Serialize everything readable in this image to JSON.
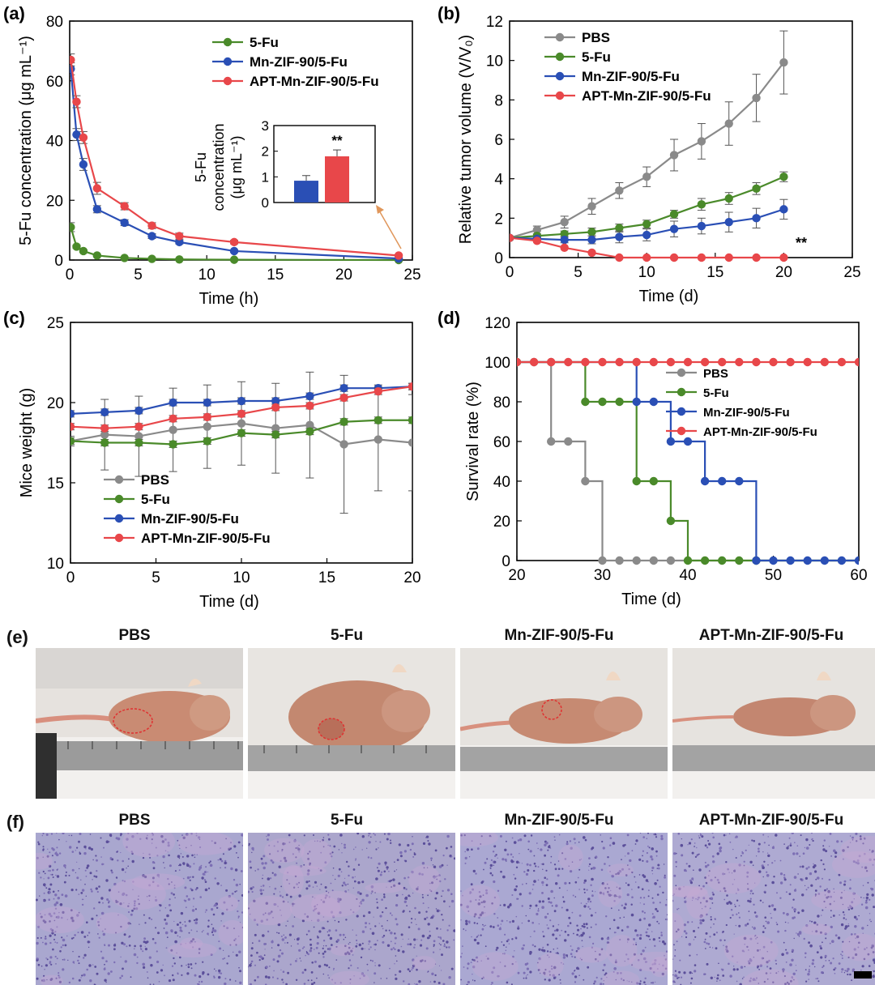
{
  "chart_data": [
    {
      "type": "line",
      "panel_label": "(a)",
      "xlabel": "Time (h)",
      "ylabel": "5-Fu concentration (μg mL⁻¹)",
      "xlim": [
        0,
        25
      ],
      "ylim": [
        0,
        80
      ],
      "xticks": [
        "0",
        "5",
        "10",
        "15",
        "20",
        "25"
      ],
      "yticks": [
        "0",
        "20",
        "40",
        "60",
        "80"
      ],
      "legend": "top-right",
      "series": [
        {
          "name": "5-Fu",
          "color": "#4a8a2a",
          "x": [
            0.08,
            0.5,
            1,
            2,
            4,
            6,
            8,
            12,
            24
          ],
          "y": [
            11,
            4.5,
            3,
            1.5,
            0.7,
            0.4,
            0.2,
            0.1,
            0
          ],
          "err": [
            1.5,
            0.5,
            0.4,
            0.2,
            0.1,
            0.1,
            0.05,
            0.05,
            0
          ]
        },
        {
          "name": "Mn-ZIF-90/5-Fu",
          "color": "#2a4fb5",
          "x": [
            0.08,
            0.5,
            1,
            2,
            4,
            6,
            8,
            12,
            24
          ],
          "y": [
            64,
            42,
            32,
            17,
            12.5,
            8,
            6,
            3,
            0.5
          ],
          "err": [
            2,
            2,
            2,
            1.2,
            1,
            0.8,
            0.6,
            0.4,
            0.2
          ]
        },
        {
          "name": "APT-Mn-ZIF-90/5-Fu",
          "color": "#e8474a",
          "x": [
            0.08,
            0.5,
            1,
            2,
            4,
            6,
            8,
            12,
            24
          ],
          "y": [
            67,
            53,
            41,
            24,
            18,
            11.5,
            8,
            6,
            1.5
          ],
          "err": [
            2,
            2,
            2,
            2,
            1.2,
            1,
            1,
            0.6,
            0.3
          ]
        }
      ],
      "inset": {
        "type": "bar",
        "ylabel_line1": "5-Fu",
        "ylabel_line2": "concentration",
        "ylabel_line3": "(μg mL⁻¹)",
        "yticks": [
          "0",
          "1",
          "2",
          "3"
        ],
        "ylim": [
          0,
          3
        ],
        "values": [
          0.85,
          1.8
        ],
        "err": [
          0.2,
          0.25
        ],
        "colors": [
          "#2a4fb5",
          "#e8474a"
        ],
        "annotation": "**"
      }
    },
    {
      "type": "line",
      "panel_label": "(b)",
      "xlabel": "Time (d)",
      "ylabel": "Relative tumor volume (V/V₀)",
      "xlim": [
        0,
        25
      ],
      "ylim": [
        0,
        12
      ],
      "xticks": [
        "0",
        "5",
        "10",
        "15",
        "20",
        "25"
      ],
      "yticks": [
        "0",
        "2",
        "4",
        "6",
        "8",
        "10",
        "12"
      ],
      "legend": "top-left",
      "annotation": "**",
      "series": [
        {
          "name": "PBS",
          "color": "#8a8a8a",
          "x": [
            0,
            2,
            4,
            6,
            8,
            10,
            12,
            14,
            16,
            18,
            20
          ],
          "y": [
            1,
            1.4,
            1.8,
            2.6,
            3.4,
            4.1,
            5.2,
            5.9,
            6.8,
            8.1,
            9.9
          ],
          "err": [
            0.1,
            0.2,
            0.3,
            0.4,
            0.4,
            0.5,
            0.8,
            0.9,
            1.1,
            1.2,
            1.6
          ]
        },
        {
          "name": "5-Fu",
          "color": "#4a8a2a",
          "x": [
            0,
            2,
            4,
            6,
            8,
            10,
            12,
            14,
            16,
            18,
            20
          ],
          "y": [
            1,
            1.1,
            1.2,
            1.3,
            1.5,
            1.7,
            2.2,
            2.7,
            3.0,
            3.5,
            4.1
          ],
          "err": [
            0.05,
            0.1,
            0.15,
            0.2,
            0.2,
            0.2,
            0.2,
            0.3,
            0.3,
            0.3,
            0.25
          ]
        },
        {
          "name": "Mn-ZIF-90/5-Fu",
          "color": "#2a4fb5",
          "x": [
            0,
            2,
            4,
            6,
            8,
            10,
            12,
            14,
            16,
            18,
            20
          ],
          "y": [
            1,
            0.95,
            0.9,
            0.9,
            1.05,
            1.15,
            1.45,
            1.6,
            1.8,
            2.0,
            2.45
          ],
          "err": [
            0.05,
            0.1,
            0.15,
            0.2,
            0.3,
            0.3,
            0.4,
            0.4,
            0.5,
            0.5,
            0.5
          ]
        },
        {
          "name": "APT-Mn-ZIF-90/5-Fu",
          "color": "#e8474a",
          "x": [
            0,
            2,
            4,
            6,
            8,
            10,
            12,
            14,
            16,
            18,
            20
          ],
          "y": [
            1,
            0.85,
            0.5,
            0.25,
            0,
            0,
            0,
            0,
            0,
            0,
            0
          ],
          "err": [
            0,
            0,
            0,
            0,
            0,
            0,
            0,
            0,
            0,
            0,
            0
          ]
        }
      ]
    },
    {
      "type": "line",
      "panel_label": "(c)",
      "xlabel": "Time (d)",
      "ylabel": "Mice weight (g)",
      "xlim": [
        0,
        20
      ],
      "ylim": [
        10,
        25
      ],
      "xticks": [
        "0",
        "5",
        "10",
        "15",
        "20"
      ],
      "yticks": [
        "10",
        "15",
        "20",
        "25"
      ],
      "legend": "bottom-left",
      "series": [
        {
          "name": "PBS",
          "color": "#8a8a8a",
          "x": [
            0,
            2,
            4,
            6,
            8,
            10,
            12,
            14,
            16,
            18,
            20
          ],
          "y": [
            17.6,
            18.0,
            17.9,
            18.3,
            18.5,
            18.7,
            18.4,
            18.6,
            17.4,
            17.7,
            17.5
          ],
          "err": [
            0.3,
            2.2,
            2.5,
            2.6,
            2.6,
            2.6,
            2.8,
            3.3,
            4.3,
            3.2,
            3.0
          ]
        },
        {
          "name": "5-Fu",
          "color": "#4a8a2a",
          "x": [
            0,
            2,
            4,
            6,
            8,
            10,
            12,
            14,
            16,
            18,
            20
          ],
          "y": [
            17.6,
            17.5,
            17.5,
            17.4,
            17.6,
            18.1,
            18.0,
            18.2,
            18.8,
            18.9,
            18.9
          ],
          "err": [
            0.2,
            0.2,
            0.2,
            0.2,
            0.2,
            0.2,
            0.2,
            0.2,
            0.2,
            0.2,
            0.2
          ]
        },
        {
          "name": "Mn-ZIF-90/5-Fu",
          "color": "#2a4fb5",
          "x": [
            0,
            2,
            4,
            6,
            8,
            10,
            12,
            14,
            16,
            18,
            20
          ],
          "y": [
            19.3,
            19.4,
            19.5,
            20.0,
            20.0,
            20.1,
            20.1,
            20.4,
            20.9,
            20.9,
            21.0
          ],
          "err": [
            0.2,
            0.2,
            0.2,
            0.2,
            0.2,
            0.2,
            0.2,
            0.2,
            0.2,
            0.2,
            0.2
          ]
        },
        {
          "name": "APT-Mn-ZIF-90/5-Fu",
          "color": "#e8474a",
          "x": [
            0,
            2,
            4,
            6,
            8,
            10,
            12,
            14,
            16,
            18,
            20
          ],
          "y": [
            18.5,
            18.4,
            18.5,
            19.0,
            19.1,
            19.3,
            19.7,
            19.8,
            20.3,
            20.7,
            21.0
          ],
          "err": [
            0.2,
            0.2,
            0.2,
            0.2,
            0.2,
            0.2,
            0.2,
            0.2,
            0.2,
            0.2,
            0.2
          ]
        }
      ]
    },
    {
      "type": "line",
      "panel_label": "(d)",
      "xlabel": "Time (d)",
      "ylabel": "Survival rate (%)",
      "xlim": [
        20,
        60
      ],
      "ylim": [
        0,
        120
      ],
      "xticks": [
        "20",
        "30",
        "40",
        "50",
        "60"
      ],
      "yticks": [
        "0",
        "20",
        "40",
        "60",
        "80",
        "100",
        "120"
      ],
      "legend": "center-right",
      "step": true,
      "series": [
        {
          "name": "PBS",
          "color": "#8a8a8a",
          "steps": [
            [
              20,
              100
            ],
            [
              24,
              60
            ],
            [
              28,
              40
            ],
            [
              30,
              0
            ],
            [
              60,
              0
            ]
          ],
          "markers": [
            [
              20,
              100
            ],
            [
              22,
              100
            ],
            [
              24,
              100
            ],
            [
              24,
              60
            ],
            [
              26,
              60
            ],
            [
              28,
              40
            ],
            [
              30,
              0
            ],
            [
              32,
              0
            ],
            [
              34,
              0
            ],
            [
              36,
              0
            ],
            [
              38,
              0
            ]
          ]
        },
        {
          "name": "5-Fu",
          "color": "#4a8a2a",
          "steps": [
            [
              20,
              100
            ],
            [
              28,
              80
            ],
            [
              34,
              40
            ],
            [
              38,
              20
            ],
            [
              40,
              0
            ],
            [
              60,
              0
            ]
          ],
          "markers": [
            [
              20,
              100
            ],
            [
              28,
              80
            ],
            [
              30,
              80
            ],
            [
              32,
              80
            ],
            [
              34,
              40
            ],
            [
              36,
              40
            ],
            [
              38,
              20
            ],
            [
              40,
              0
            ],
            [
              42,
              0
            ],
            [
              44,
              0
            ],
            [
              46,
              0
            ],
            [
              48,
              0
            ]
          ]
        },
        {
          "name": "Mn-ZIF-90/5-Fu",
          "color": "#2a4fb5",
          "steps": [
            [
              20,
              100
            ],
            [
              34,
              80
            ],
            [
              38,
              60
            ],
            [
              42,
              40
            ],
            [
              48,
              0
            ],
            [
              60,
              0
            ]
          ],
          "markers": [
            [
              34,
              80
            ],
            [
              36,
              80
            ],
            [
              38,
              60
            ],
            [
              40,
              60
            ],
            [
              42,
              40
            ],
            [
              44,
              40
            ],
            [
              46,
              40
            ],
            [
              48,
              0
            ],
            [
              50,
              0
            ],
            [
              52,
              0
            ],
            [
              54,
              0
            ],
            [
              56,
              0
            ],
            [
              58,
              0
            ],
            [
              60,
              0
            ]
          ]
        },
        {
          "name": "APT-Mn-ZIF-90/5-Fu",
          "color": "#e8474a",
          "steps": [
            [
              20,
              100
            ],
            [
              60,
              100
            ]
          ],
          "markers": [
            [
              20,
              100
            ],
            [
              22,
              100
            ],
            [
              24,
              100
            ],
            [
              26,
              100
            ],
            [
              28,
              100
            ],
            [
              30,
              100
            ],
            [
              32,
              100
            ],
            [
              34,
              100
            ],
            [
              36,
              100
            ],
            [
              38,
              100
            ],
            [
              40,
              100
            ],
            [
              42,
              100
            ],
            [
              44,
              100
            ],
            [
              46,
              100
            ],
            [
              48,
              100
            ],
            [
              50,
              100
            ],
            [
              52,
              100
            ],
            [
              54,
              100
            ],
            [
              56,
              100
            ],
            [
              58,
              100
            ],
            [
              60,
              100
            ]
          ]
        }
      ]
    }
  ],
  "panel_e": {
    "label": "(e)",
    "titles": [
      "PBS",
      "5-Fu",
      "Mn-ZIF-90/5-Fu",
      "APT-Mn-ZIF-90/5-Fu"
    ]
  },
  "panel_f": {
    "label": "(f)",
    "titles": [
      "PBS",
      "5-Fu",
      "Mn-ZIF-90/5-Fu",
      "APT-Mn-ZIF-90/5-Fu"
    ]
  }
}
